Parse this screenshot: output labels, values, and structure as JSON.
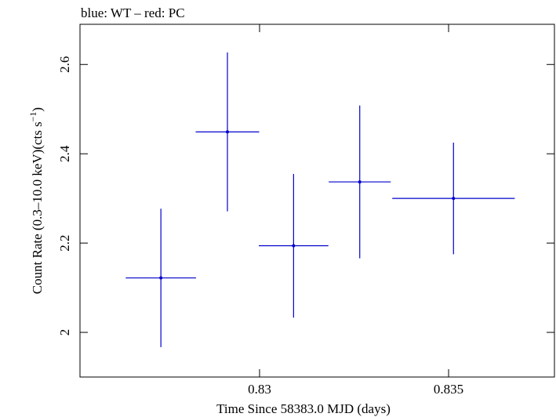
{
  "chart_data": {
    "type": "scatter",
    "title": "blue: WT – red: PC",
    "xlabel": "Time Since 58383.0 MJD (days)",
    "ylabel_main": "Count Rate (0.3–10.0 keV)(cts s",
    "ylabel_sup": "−1",
    "ylabel_close": ")",
    "xlim": [
      0.82525,
      0.8378
    ],
    "ylim": [
      1.9,
      2.69
    ],
    "x_ticks": [
      0.83,
      0.835
    ],
    "x_tick_labels": [
      "0.83",
      "0.835"
    ],
    "y_ticks": [
      2.0,
      2.2,
      2.4,
      2.6
    ],
    "y_tick_labels": [
      "2",
      "2.2",
      "2.4",
      "2.6"
    ],
    "grid": false,
    "series": [
      {
        "name": "WT",
        "color": "#0000cc",
        "points": [
          {
            "x": 0.82739,
            "xerr": 0.00093,
            "y": 2.122,
            "yerr": 0.155
          },
          {
            "x": 0.82915,
            "xerr": 0.00084,
            "y": 2.449,
            "yerr": 0.178
          },
          {
            "x": 0.8309,
            "xerr": 0.00092,
            "y": 2.194,
            "yerr": 0.161
          },
          {
            "x": 0.83265,
            "xerr": 0.00082,
            "y": 2.337,
            "yerr": 0.171
          },
          {
            "x": 0.83513,
            "xerr": 0.00162,
            "y": 2.3,
            "yerr": 0.125
          }
        ]
      }
    ]
  }
}
